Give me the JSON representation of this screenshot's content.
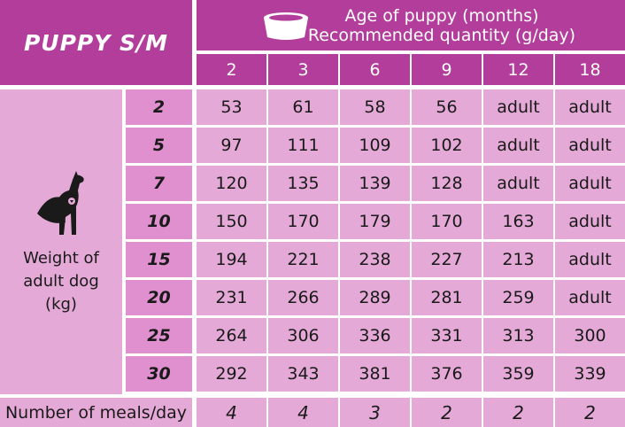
{
  "title": "PUPPY S/M",
  "header": {
    "age_label": "Age of puppy (months)",
    "quantity_label": "Recommended quantity (g/day)",
    "bowl_icon": "food-bowl-icon"
  },
  "ages": [
    "2",
    "3",
    "6",
    "9",
    "12",
    "18"
  ],
  "weight_label_lines": [
    "Weight of",
    "adult dog",
    "(kg)"
  ],
  "dog_icon": "superhero-dog-icon",
  "rows": [
    {
      "weight": "2",
      "values": [
        "53",
        "61",
        "58",
        "56",
        "adult",
        "adult"
      ]
    },
    {
      "weight": "5",
      "values": [
        "97",
        "111",
        "109",
        "102",
        "adult",
        "adult"
      ]
    },
    {
      "weight": "7",
      "values": [
        "120",
        "135",
        "139",
        "128",
        "adult",
        "adult"
      ]
    },
    {
      "weight": "10",
      "values": [
        "150",
        "170",
        "179",
        "170",
        "163",
        "adult"
      ]
    },
    {
      "weight": "15",
      "values": [
        "194",
        "221",
        "238",
        "227",
        "213",
        "adult"
      ]
    },
    {
      "weight": "20",
      "values": [
        "231",
        "266",
        "289",
        "281",
        "259",
        "adult"
      ]
    },
    {
      "weight": "25",
      "values": [
        "264",
        "306",
        "336",
        "331",
        "313",
        "300"
      ]
    },
    {
      "weight": "30",
      "values": [
        "292",
        "343",
        "381",
        "376",
        "359",
        "339"
      ]
    }
  ],
  "meals": {
    "label": "Number of meals/day",
    "values": [
      "4",
      "4",
      "3",
      "2",
      "2",
      "2"
    ]
  },
  "colors": {
    "magenta": "#b23d9b",
    "light_pink": "#e4a9d6",
    "mid_pink": "#e08fcf"
  }
}
